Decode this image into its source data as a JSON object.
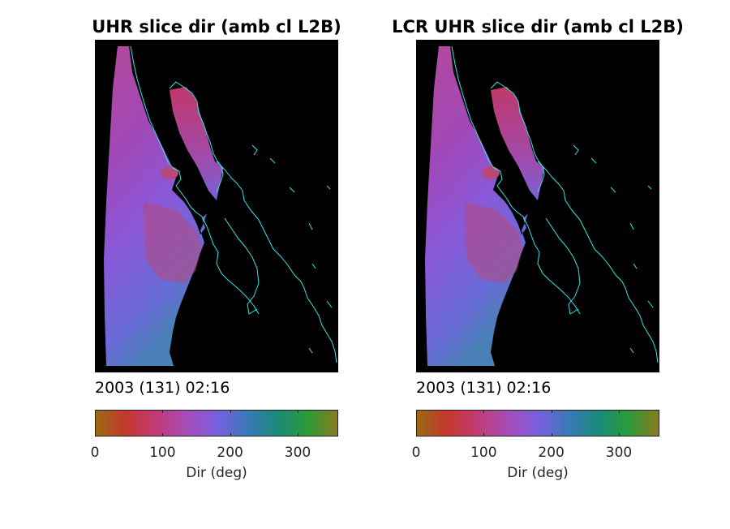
{
  "chart_data": [
    {
      "type": "heatmap",
      "title": "UHR slice dir (amb cl L2B)",
      "timestamp": "2003 (131) 02:16",
      "colorbar": {
        "label": "Dir (deg)",
        "range": [
          0,
          360
        ],
        "ticks": [
          0,
          100,
          200,
          300
        ],
        "colors": [
          "#9a6a14",
          "#c4382e",
          "#c23a76",
          "#a64cb8",
          "#7a5fe0",
          "#3b78b8",
          "#1a8a7a",
          "#2a9a3a",
          "#8a7a1e"
        ]
      }
    },
    {
      "type": "heatmap",
      "title": "LCR UHR slice dir (amb cl L2B)",
      "timestamp": "2003 (131) 02:16",
      "colorbar": {
        "label": "Dir (deg)",
        "range": [
          0,
          360
        ],
        "ticks": [
          0,
          100,
          200,
          300
        ],
        "colors": [
          "#9a6a14",
          "#c4382e",
          "#c23a76",
          "#a64cb8",
          "#7a5fe0",
          "#3b78b8",
          "#1a8a7a",
          "#2a9a3a",
          "#8a7a1e"
        ]
      }
    }
  ],
  "colors": {
    "background": "#000000",
    "coastline": "#33e6e6"
  }
}
